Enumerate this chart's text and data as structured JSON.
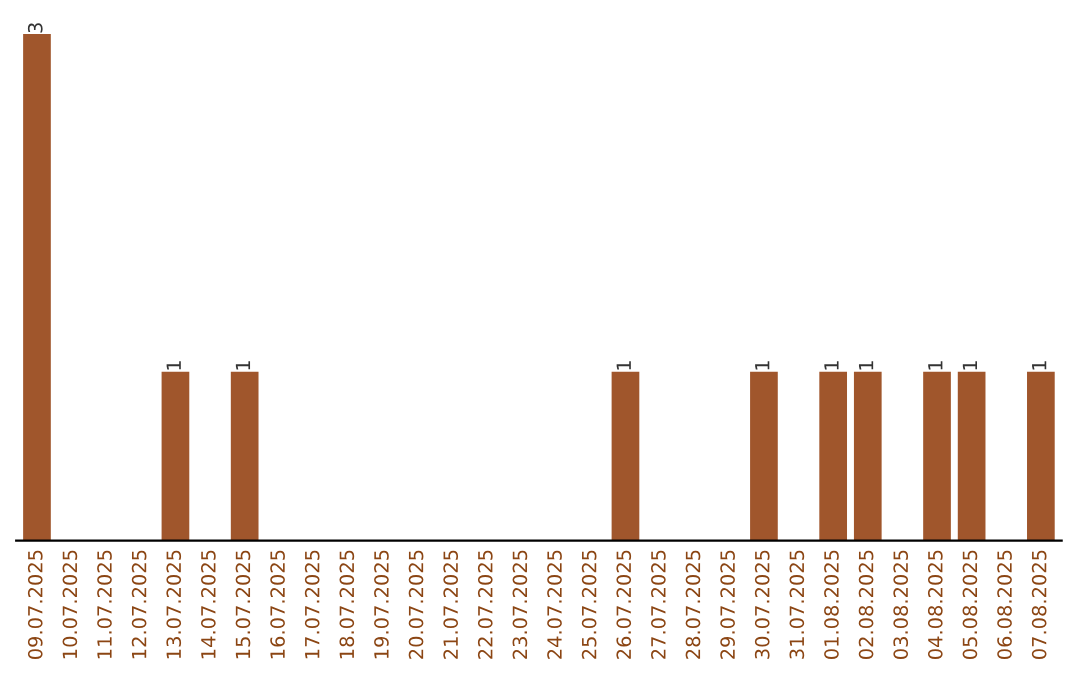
{
  "chart_data": {
    "type": "bar",
    "categories": [
      "09.07.2025",
      "10.07.2025",
      "11.07.2025",
      "12.07.2025",
      "13.07.2025",
      "14.07.2025",
      "15.07.2025",
      "16.07.2025",
      "17.07.2025",
      "18.07.2025",
      "19.07.2025",
      "20.07.2025",
      "21.07.2025",
      "22.07.2025",
      "23.07.2025",
      "24.07.2025",
      "25.07.2025",
      "26.07.2025",
      "27.07.2025",
      "28.07.2025",
      "29.07.2025",
      "30.07.2025",
      "31.07.2025",
      "01.08.2025",
      "02.08.2025",
      "03.08.2025",
      "04.08.2025",
      "05.08.2025",
      "06.08.2025",
      "07.08.2025"
    ],
    "values": [
      3,
      0,
      0,
      0,
      1,
      0,
      1,
      0,
      0,
      0,
      0,
      0,
      0,
      0,
      0,
      0,
      0,
      1,
      0,
      0,
      0,
      1,
      0,
      1,
      1,
      0,
      1,
      1,
      0,
      1
    ],
    "value_labels": [
      "3",
      null,
      null,
      null,
      "1",
      null,
      "1",
      null,
      null,
      null,
      null,
      null,
      null,
      null,
      null,
      null,
      null,
      "1",
      null,
      null,
      null,
      "1",
      null,
      "1",
      "1",
      null,
      "1",
      "1",
      null,
      "1"
    ],
    "color": "#a0562c",
    "grid": false,
    "legend": false
  }
}
